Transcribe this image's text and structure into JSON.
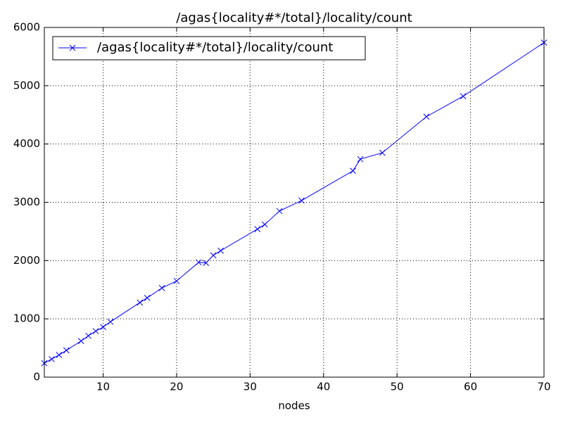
{
  "chart_data": {
    "type": "line",
    "title": "/agas{locality#*/total}/locality/count",
    "x_label": "nodes",
    "x": [
      2,
      3,
      4,
      5,
      7,
      8,
      9,
      10,
      11,
      15,
      16,
      18,
      20,
      23,
      24,
      25,
      26,
      31,
      32,
      34,
      37,
      44,
      45,
      48,
      54,
      59,
      70
    ],
    "series": [
      {
        "name": "/agas{locality#*/total}/locality/count",
        "color": "#0000ff",
        "values": [
          240,
          310,
          380,
          460,
          620,
          710,
          790,
          860,
          950,
          1280,
          1360,
          1530,
          1650,
          1970,
          1960,
          2090,
          2170,
          2540,
          2620,
          2850,
          3030,
          3540,
          3740,
          3850,
          4470,
          4820,
          5740
        ]
      }
    ],
    "xlim": [
      2,
      70
    ],
    "xticks": [
      10,
      20,
      30,
      40,
      50,
      60,
      70
    ],
    "ylim": [
      0,
      6000
    ],
    "yticks": [
      0,
      1000,
      2000,
      3000,
      4000,
      5000,
      6000
    ],
    "grid": true,
    "legend": "upper-left"
  }
}
